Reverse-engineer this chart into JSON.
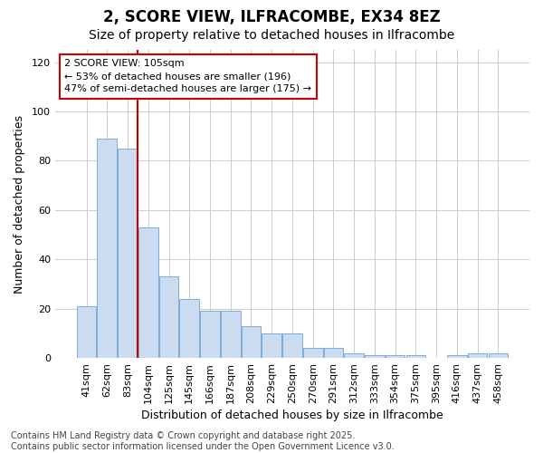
{
  "title": "2, SCORE VIEW, ILFRACOMBE, EX34 8EZ",
  "subtitle": "Size of property relative to detached houses in Ilfracombe",
  "xlabel": "Distribution of detached houses by size in Ilfracombe",
  "ylabel": "Number of detached properties",
  "categories": [
    "41sqm",
    "62sqm",
    "83sqm",
    "104sqm",
    "125sqm",
    "145sqm",
    "166sqm",
    "187sqm",
    "208sqm",
    "229sqm",
    "250sqm",
    "270sqm",
    "291sqm",
    "312sqm",
    "333sqm",
    "354sqm",
    "375sqm",
    "395sqm",
    "416sqm",
    "437sqm",
    "458sqm"
  ],
  "values": [
    21,
    89,
    85,
    53,
    33,
    24,
    19,
    19,
    13,
    10,
    10,
    4,
    4,
    2,
    1,
    1,
    1,
    0,
    1,
    2,
    2
  ],
  "bar_color": "#ccdcf0",
  "bar_edge_color": "#7aacdc",
  "vline_index": 3,
  "vline_color": "#cc0000",
  "annotation_text": "2 SCORE VIEW: 105sqm\n← 53% of detached houses are smaller (196)\n47% of semi-detached houses are larger (175) →",
  "annotation_box_facecolor": "#ffffff",
  "annotation_box_edgecolor": "#cc0000",
  "ylim": [
    0,
    125
  ],
  "yticks": [
    0,
    20,
    40,
    60,
    80,
    100,
    120
  ],
  "grid_color": "#cccccc",
  "plot_bg_color": "#ffffff",
  "fig_bg_color": "#ffffff",
  "footer_text": "Contains HM Land Registry data © Crown copyright and database right 2025.\nContains public sector information licensed under the Open Government Licence v3.0.",
  "title_fontsize": 12,
  "subtitle_fontsize": 10,
  "label_fontsize": 9,
  "tick_fontsize": 8,
  "annotation_fontsize": 8,
  "footer_fontsize": 7
}
